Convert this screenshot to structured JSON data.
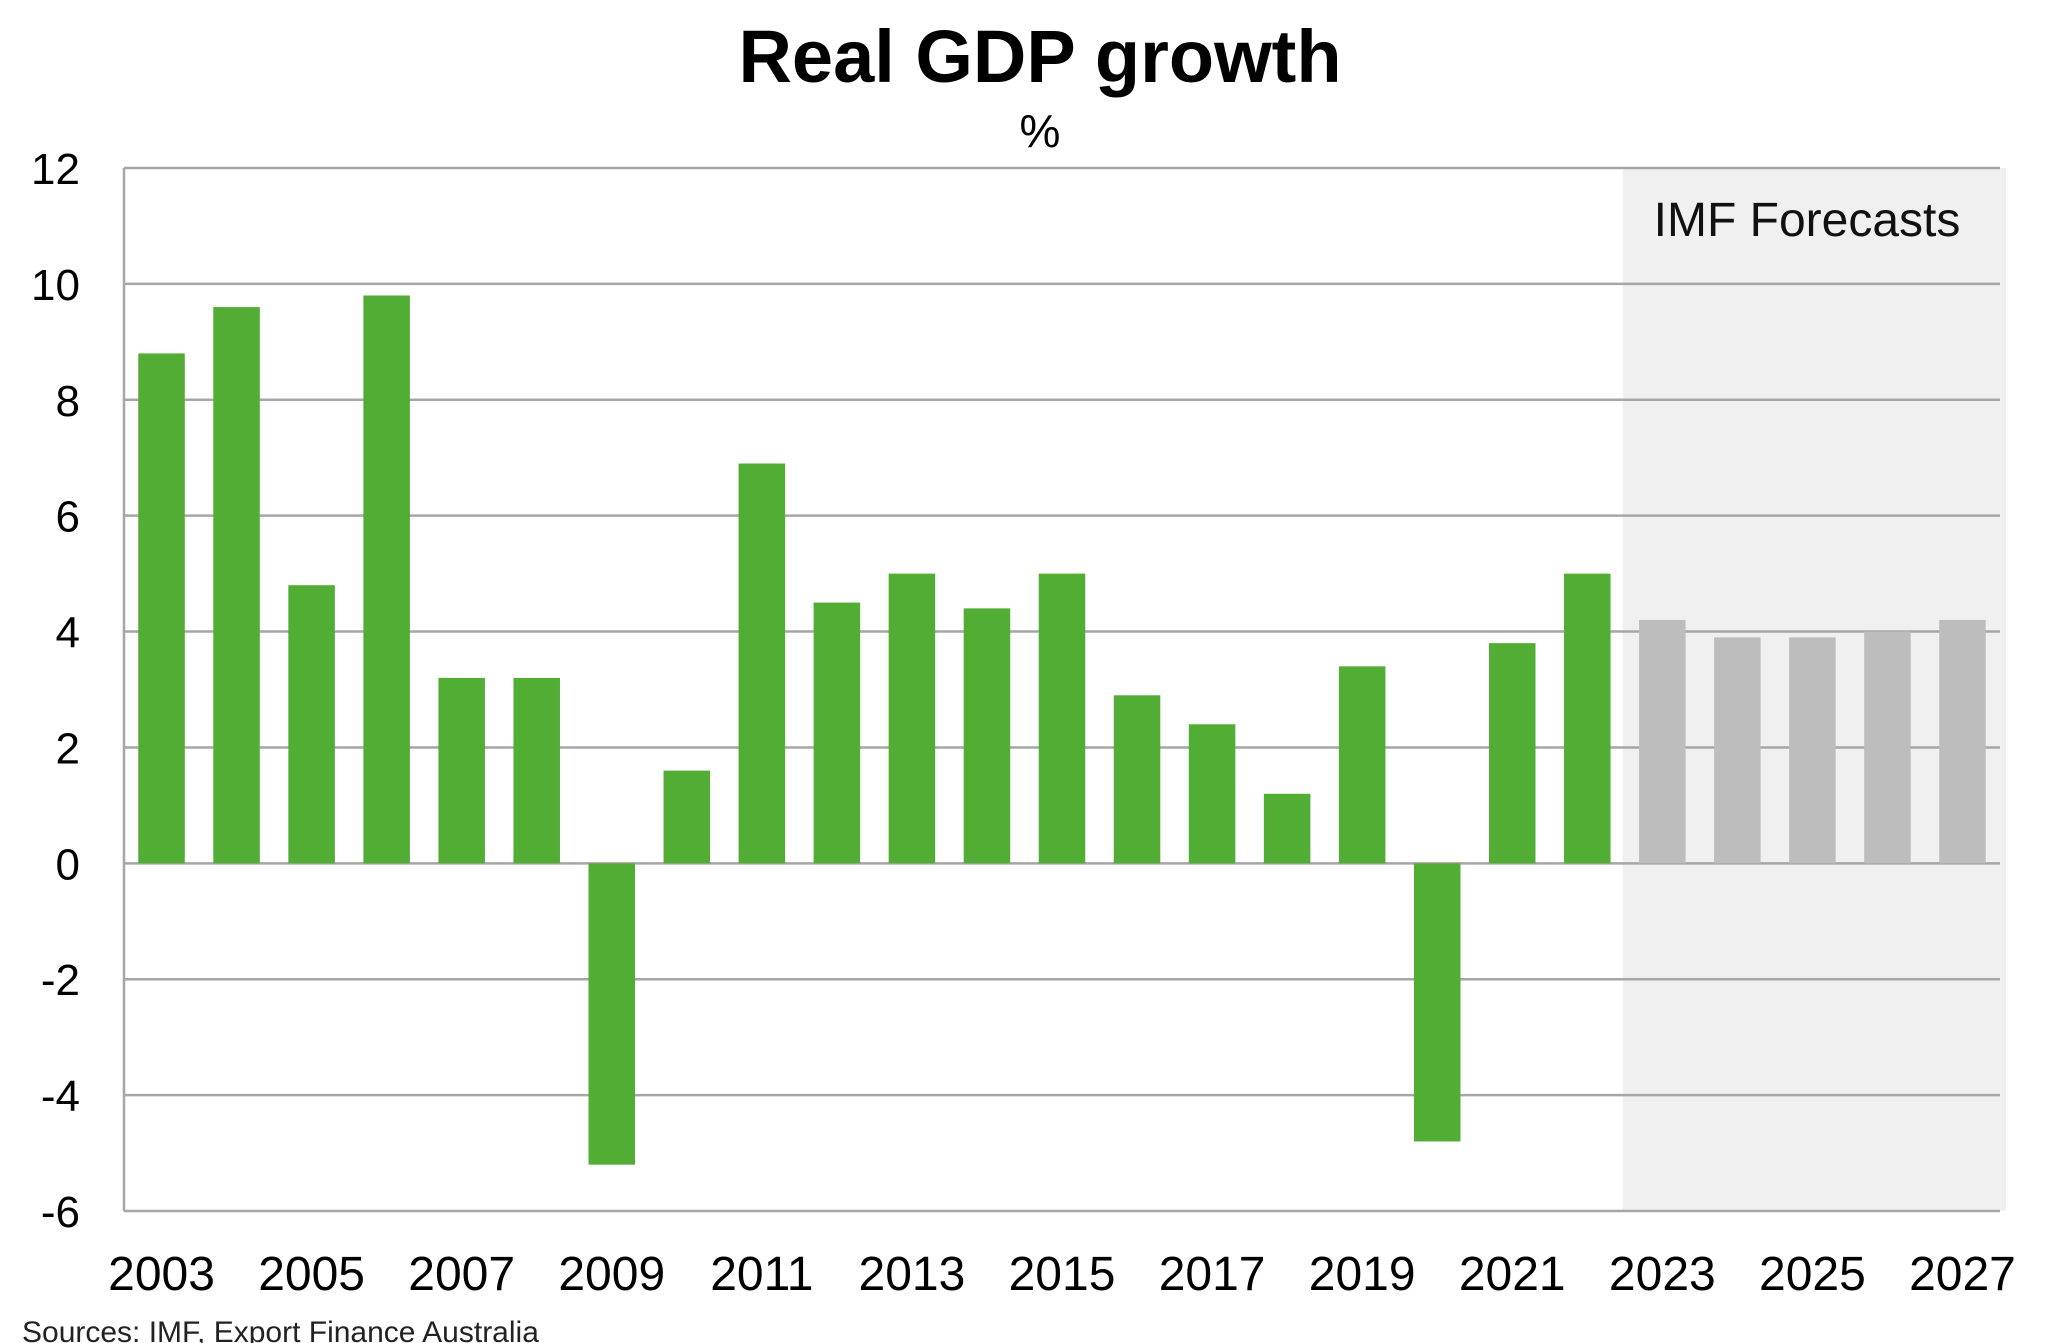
{
  "chart_data": {
    "type": "bar",
    "title": "Real GDP growth",
    "subtitle": "%",
    "xlabel": "",
    "ylabel": "",
    "ylim": [
      -6,
      12
    ],
    "yticks": [
      "-6",
      "-4",
      "-2",
      "0",
      "2",
      "4",
      "6",
      "8",
      "10",
      "12"
    ],
    "grid": true,
    "categories": [
      "2003",
      "2004",
      "2005",
      "2006",
      "2007",
      "2008",
      "2009",
      "2010",
      "2011",
      "2012",
      "2013",
      "2014",
      "2015",
      "2016",
      "2017",
      "2018",
      "2019",
      "2020",
      "2021",
      "2022",
      "2023",
      "2024",
      "2025",
      "2026",
      "2027"
    ],
    "xtick_labels": [
      "2003",
      "2005",
      "2007",
      "2009",
      "2011",
      "2013",
      "2015",
      "2017",
      "2019",
      "2021",
      "2023",
      "2025",
      "2027"
    ],
    "series": [
      {
        "values": [
          8.8,
          9.6,
          4.8,
          9.8,
          3.2,
          3.2,
          -5.2,
          1.6,
          6.9,
          4.5,
          5.0,
          4.4,
          5.0,
          2.9,
          2.4,
          1.2,
          3.4,
          -4.8,
          3.8,
          5.0,
          4.2,
          3.9,
          3.9,
          4.0,
          4.2
        ]
      }
    ],
    "colors": {
      "actual": "#52ad35",
      "forecast": "#bdbdbd",
      "forecast_region": "#f0f0f0",
      "grid": "#a6a6a6"
    },
    "forecast_start": "2023",
    "annotation": "IMF Forecasts",
    "source": "Sources: IMF, Export Finance Australia"
  }
}
